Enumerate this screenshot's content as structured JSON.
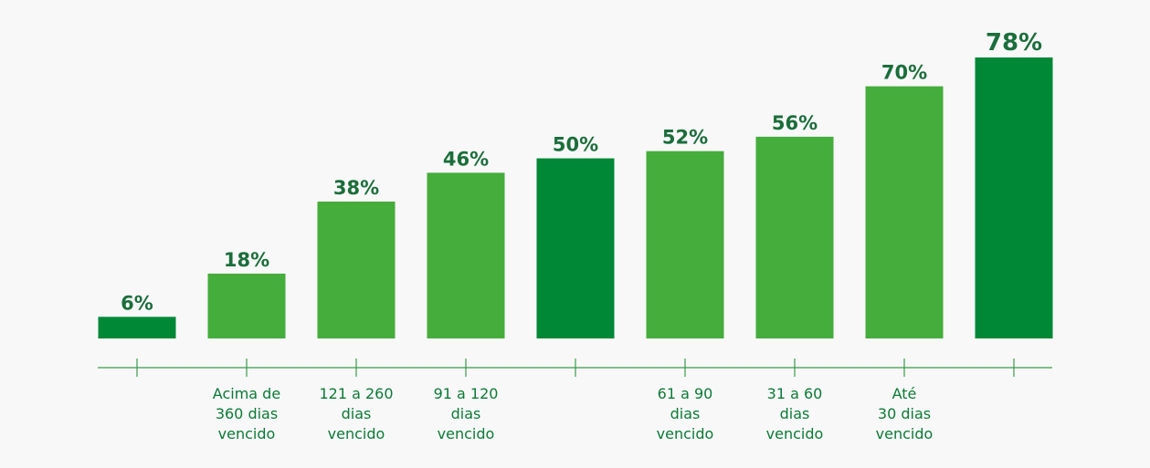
{
  "chart_data": {
    "type": "bar",
    "categories": [
      null,
      "Acima de\n360 dias\nvencido",
      "121 a 260\ndias\nvencido",
      "91 a 120\ndias\nvencido",
      null,
      "61 a 90\ndias\nvencido",
      "31 a 60\ndias\nvencido",
      "Até\n30 dias\nvencido",
      null
    ],
    "values": [
      6,
      18,
      38,
      46,
      50,
      52,
      56,
      70,
      78
    ],
    "value_labels": [
      "6%",
      "18%",
      "38%",
      "46%",
      "50%",
      "52%",
      "56%",
      "70%",
      "78%"
    ],
    "colors": [
      "#008837",
      "#45ad3c",
      "#45ad3c",
      "#45ad3c",
      "#008837",
      "#45ad3c",
      "#45ad3c",
      "#45ad3c",
      "#008837"
    ]
  }
}
